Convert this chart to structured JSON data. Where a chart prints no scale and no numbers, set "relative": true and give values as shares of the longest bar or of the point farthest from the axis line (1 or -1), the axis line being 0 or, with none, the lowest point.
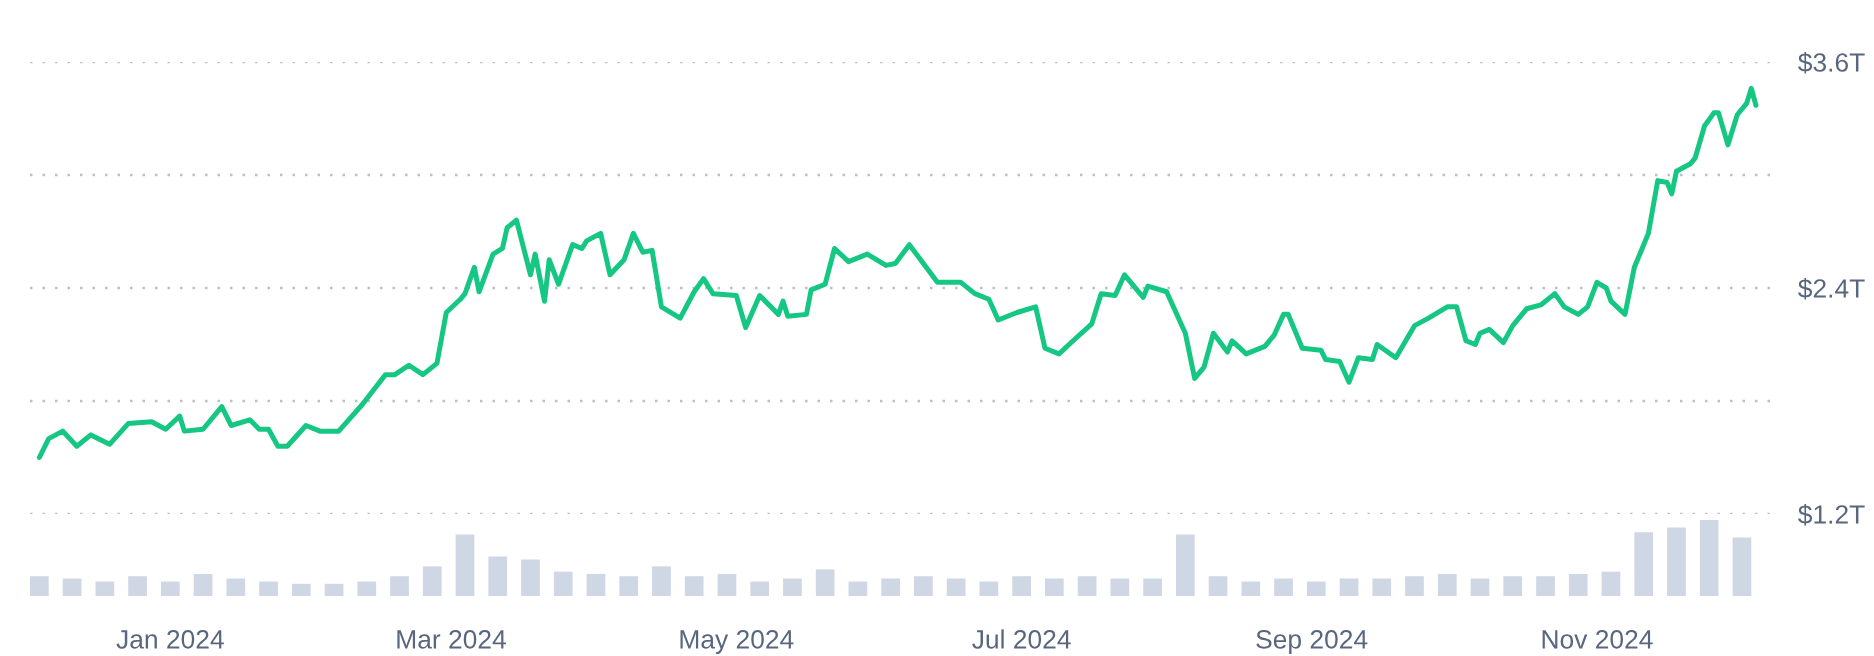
{
  "chart_data": [
    {
      "type": "line",
      "color": "#16c784",
      "xlim": [
        "2023-12-02",
        "2024-12-08"
      ],
      "ylim": [
        1.2,
        3.6
      ],
      "yticks": [
        {
          "value": 1.2,
          "label": "$1.2T"
        },
        {
          "value": 1.8,
          "label": null
        },
        {
          "value": 2.4,
          "label": "$2.4T"
        },
        {
          "value": 3.0,
          "label": null
        },
        {
          "value": 3.6,
          "label": "$3.6T"
        }
      ],
      "grid": "y",
      "tick_labels": "y",
      "x": [
        "2023-12-04",
        "2023-12-06",
        "2023-12-09",
        "2023-12-12",
        "2023-12-15",
        "2023-12-19",
        "2023-12-23",
        "2023-12-28",
        "2023-12-31",
        "2024-01-03",
        "2024-01-04",
        "2024-01-08",
        "2024-01-12",
        "2024-01-14",
        "2024-01-18",
        "2024-01-20",
        "2024-01-22",
        "2024-01-24",
        "2024-01-26",
        "2024-01-30",
        "2024-02-02",
        "2024-02-06",
        "2024-02-11",
        "2024-02-16",
        "2024-02-18",
        "2024-02-21",
        "2024-02-24",
        "2024-02-27",
        "2024-02-29",
        "2024-03-03",
        "2024-03-04",
        "2024-03-06",
        "2024-03-07",
        "2024-03-10",
        "2024-03-12",
        "2024-03-13",
        "2024-03-15",
        "2024-03-18",
        "2024-03-19",
        "2024-03-21",
        "2024-03-22",
        "2024-03-24",
        "2024-03-27",
        "2024-03-29",
        "2024-03-30",
        "2024-04-02",
        "2024-04-04",
        "2024-04-07",
        "2024-04-09",
        "2024-04-11",
        "2024-04-13",
        "2024-04-15",
        "2024-04-19",
        "2024-04-22",
        "2024-04-24",
        "2024-04-26",
        "2024-05-01",
        "2024-05-03",
        "2024-05-06",
        "2024-05-10",
        "2024-05-11",
        "2024-05-12",
        "2024-05-16",
        "2024-05-17",
        "2024-05-20",
        "2024-05-22",
        "2024-05-25",
        "2024-05-29",
        "2024-06-02",
        "2024-06-04",
        "2024-06-07",
        "2024-06-10",
        "2024-06-13",
        "2024-06-18",
        "2024-06-21",
        "2024-06-24",
        "2024-06-26",
        "2024-06-30",
        "2024-07-04",
        "2024-07-06",
        "2024-07-09",
        "2024-07-12",
        "2024-07-16",
        "2024-07-18",
        "2024-07-21",
        "2024-07-23",
        "2024-07-27",
        "2024-07-28",
        "2024-08-01",
        "2024-08-05",
        "2024-08-07",
        "2024-08-09",
        "2024-08-11",
        "2024-08-14",
        "2024-08-15",
        "2024-08-18",
        "2024-08-22",
        "2024-08-24",
        "2024-08-26",
        "2024-08-27",
        "2024-08-30",
        "2024-09-03",
        "2024-09-04",
        "2024-09-07",
        "2024-09-09",
        "2024-09-11",
        "2024-09-14",
        "2024-09-15",
        "2024-09-19",
        "2024-09-23",
        "2024-09-26",
        "2024-09-30",
        "2024-10-02",
        "2024-10-04",
        "2024-10-06",
        "2024-10-07",
        "2024-10-09",
        "2024-10-12",
        "2024-10-14",
        "2024-10-17",
        "2024-10-20",
        "2024-10-23",
        "2024-10-25",
        "2024-10-28",
        "2024-10-30",
        "2024-11-01",
        "2024-11-03",
        "2024-11-04",
        "2024-11-07",
        "2024-11-09",
        "2024-11-12",
        "2024-11-14",
        "2024-11-16",
        "2024-11-17",
        "2024-11-18",
        "2024-11-21",
        "2024-11-22",
        "2024-11-24",
        "2024-11-26",
        "2024-11-27",
        "2024-11-29",
        "2024-12-01",
        "2024-12-03",
        "2024-12-04",
        "2024-12-05"
      ],
      "values": [
        1.5,
        1.6,
        1.64,
        1.56,
        1.62,
        1.57,
        1.68,
        1.69,
        1.65,
        1.72,
        1.64,
        1.65,
        1.77,
        1.67,
        1.7,
        1.65,
        1.65,
        1.56,
        1.56,
        1.67,
        1.64,
        1.64,
        1.78,
        1.94,
        1.94,
        1.99,
        1.94,
        2.0,
        2.27,
        2.34,
        2.37,
        2.51,
        2.38,
        2.58,
        2.61,
        2.72,
        2.76,
        2.47,
        2.58,
        2.33,
        2.55,
        2.42,
        2.63,
        2.61,
        2.65,
        2.69,
        2.47,
        2.55,
        2.69,
        2.59,
        2.6,
        2.3,
        2.24,
        2.38,
        2.45,
        2.37,
        2.36,
        2.19,
        2.36,
        2.26,
        2.33,
        2.25,
        2.26,
        2.39,
        2.42,
        2.61,
        2.54,
        2.58,
        2.52,
        2.53,
        2.63,
        2.53,
        2.43,
        2.43,
        2.37,
        2.34,
        2.23,
        2.27,
        2.3,
        2.08,
        2.05,
        2.12,
        2.21,
        2.37,
        2.36,
        2.47,
        2.35,
        2.41,
        2.38,
        2.16,
        1.92,
        1.98,
        2.16,
        2.06,
        2.12,
        2.05,
        2.09,
        2.15,
        2.26,
        2.26,
        2.08,
        2.07,
        2.02,
        2.01,
        1.9,
        2.03,
        2.02,
        2.1,
        2.03,
        2.2,
        2.24,
        2.3,
        2.3,
        2.12,
        2.1,
        2.16,
        2.18,
        2.11,
        2.2,
        2.29,
        2.31,
        2.37,
        2.3,
        2.26,
        2.3,
        2.43,
        2.4,
        2.33,
        2.26,
        2.51,
        2.69,
        2.97,
        2.96,
        2.9,
        3.02,
        3.06,
        3.09,
        3.26,
        3.33,
        3.33,
        3.16,
        3.32,
        3.38,
        3.46,
        3.37
      ]
    },
    {
      "type": "bar",
      "relative": true,
      "color": "#cfd6e4",
      "xlim": [
        "2023-12-02",
        "2024-12-08"
      ],
      "xticks": [
        {
          "value": "2024-01-01",
          "label": "Jan 2024"
        },
        {
          "value": "2024-03-01",
          "label": "Mar 2024"
        },
        {
          "value": "2024-05-01",
          "label": "May 2024"
        },
        {
          "value": "2024-07-01",
          "label": "Jul 2024"
        },
        {
          "value": "2024-09-01",
          "label": "Sep 2024"
        },
        {
          "value": "2024-11-01",
          "label": "Nov 2024"
        }
      ],
      "tick_labels": "x",
      "x": [
        "2023-12-04",
        "2023-12-11",
        "2023-12-18",
        "2023-12-25",
        "2024-01-01",
        "2024-01-08",
        "2024-01-15",
        "2024-01-22",
        "2024-01-29",
        "2024-02-05",
        "2024-02-12",
        "2024-02-19",
        "2024-02-26",
        "2024-03-04",
        "2024-03-11",
        "2024-03-18",
        "2024-03-25",
        "2024-04-01",
        "2024-04-08",
        "2024-04-15",
        "2024-04-22",
        "2024-04-29",
        "2024-05-06",
        "2024-05-13",
        "2024-05-20",
        "2024-05-27",
        "2024-06-03",
        "2024-06-10",
        "2024-06-17",
        "2024-06-24",
        "2024-07-01",
        "2024-07-08",
        "2024-07-15",
        "2024-07-22",
        "2024-07-29",
        "2024-08-05",
        "2024-08-12",
        "2024-08-19",
        "2024-08-26",
        "2024-09-02",
        "2024-09-09",
        "2024-09-16",
        "2024-09-23",
        "2024-09-30",
        "2024-10-07",
        "2024-10-14",
        "2024-10-21",
        "2024-10-28",
        "2024-11-04",
        "2024-11-11",
        "2024-11-18",
        "2024-11-25",
        "2024-12-02"
      ],
      "values": [
        0.26,
        0.23,
        0.19,
        0.26,
        0.19,
        0.29,
        0.23,
        0.19,
        0.16,
        0.16,
        0.19,
        0.26,
        0.39,
        0.81,
        0.52,
        0.48,
        0.32,
        0.29,
        0.26,
        0.39,
        0.26,
        0.29,
        0.19,
        0.23,
        0.35,
        0.19,
        0.23,
        0.26,
        0.23,
        0.19,
        0.26,
        0.23,
        0.26,
        0.23,
        0.23,
        0.81,
        0.26,
        0.19,
        0.23,
        0.19,
        0.23,
        0.23,
        0.26,
        0.29,
        0.23,
        0.26,
        0.26,
        0.29,
        0.32,
        0.84,
        0.9,
        1,
        0.77
      ]
    }
  ]
}
